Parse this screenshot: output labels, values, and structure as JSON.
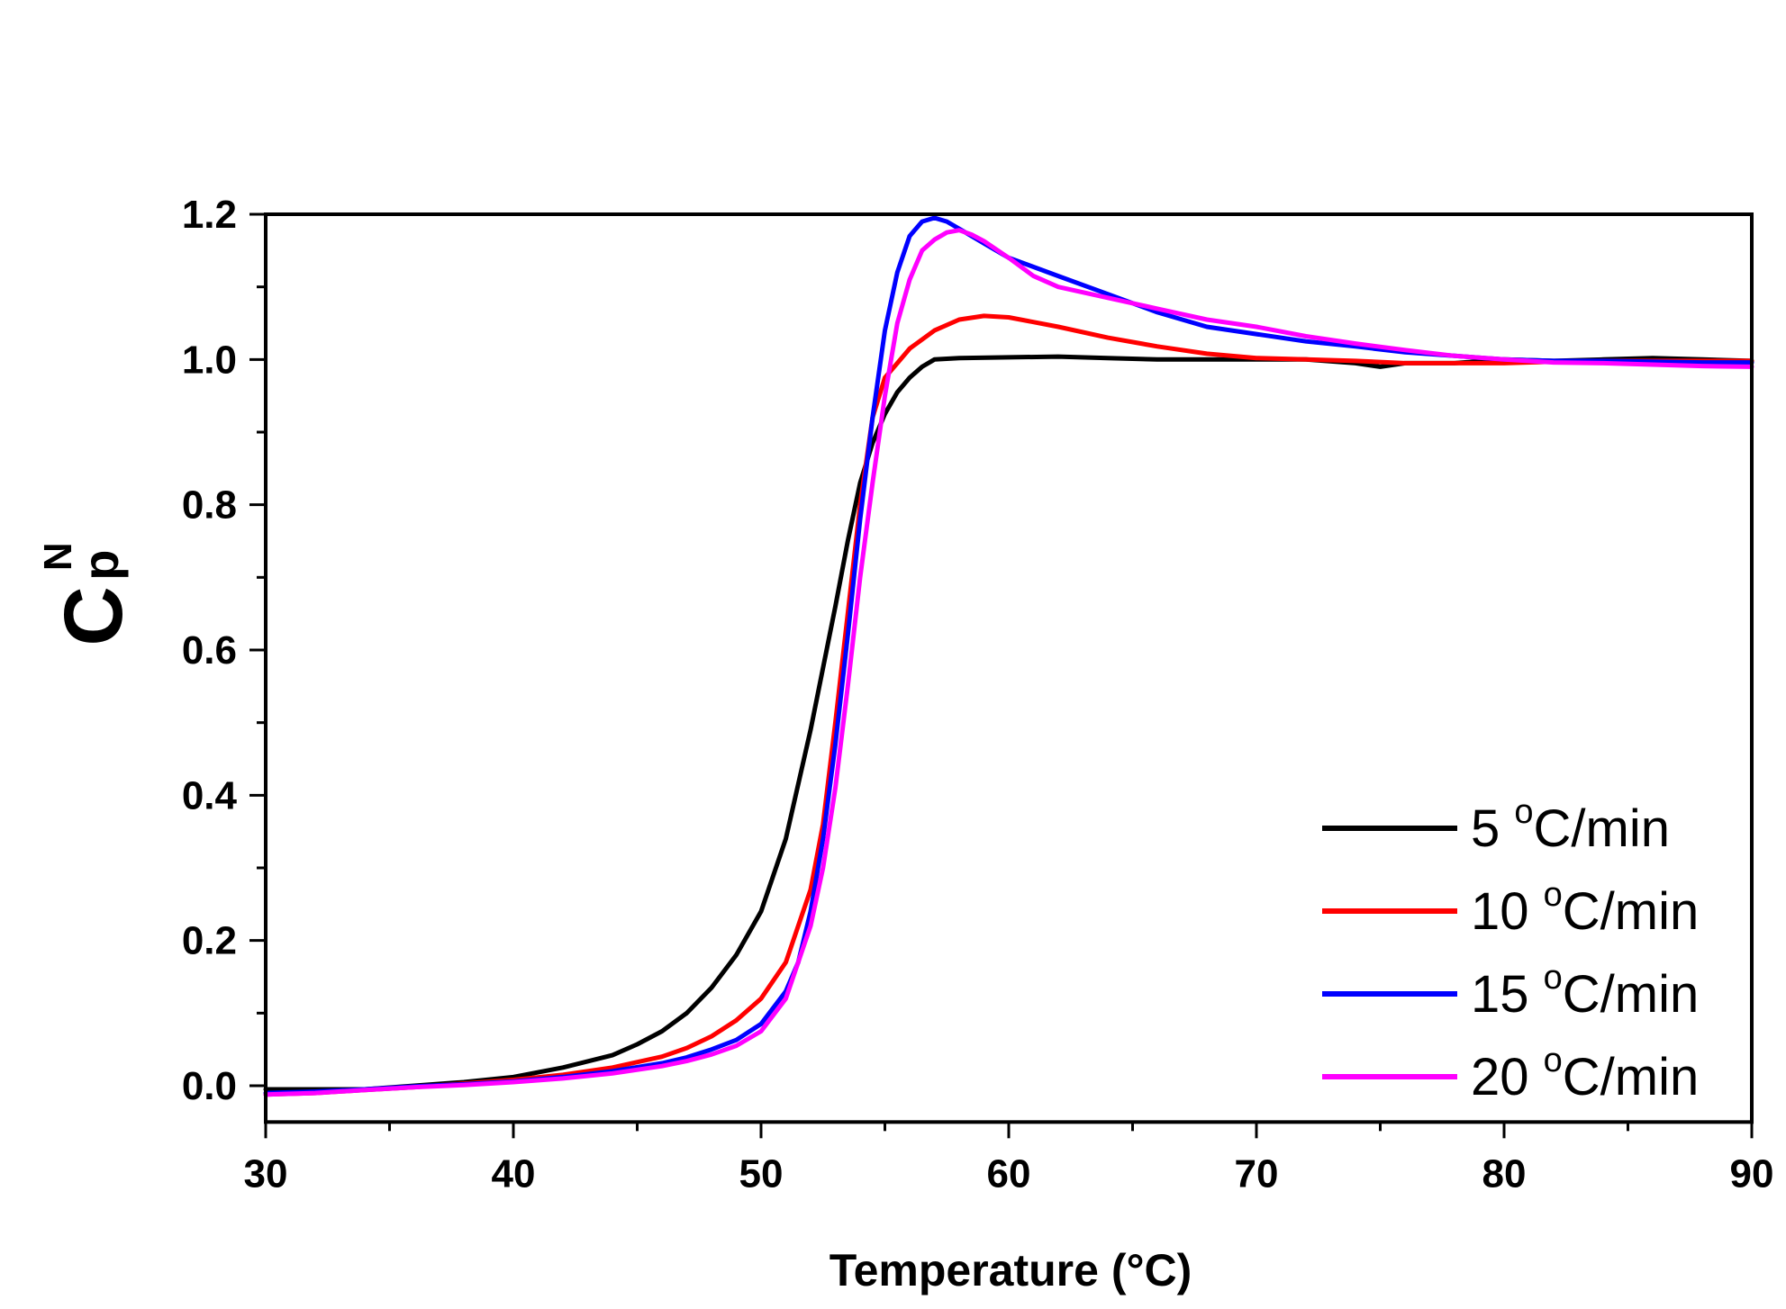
{
  "chart_data": {
    "type": "line",
    "title": "",
    "xlabel": "Temperature (°C)",
    "ylabel_main": "C",
    "ylabel_sub": "p",
    "ylabel_sup": "N",
    "xlim": [
      30,
      90
    ],
    "ylim": [
      -0.05,
      1.2
    ],
    "xticks": [
      30,
      40,
      50,
      60,
      70,
      80,
      90
    ],
    "xtick_labels": [
      "30",
      "40",
      "50",
      "60",
      "70",
      "80",
      "90"
    ],
    "yticks": [
      0.0,
      0.2,
      0.4,
      0.6,
      0.8,
      1.0,
      1.2
    ],
    "ytick_labels": [
      "0.0",
      "0.2",
      "0.4",
      "0.6",
      "0.8",
      "1.0",
      "1.2"
    ],
    "grid": false,
    "legend_position": "bottom-right",
    "series": [
      {
        "name": "5 °C/min",
        "rate": "5",
        "unit": "C/min",
        "color": "#000000",
        "x": [
          30,
          32,
          34,
          36,
          38,
          40,
          42,
          44,
          45,
          46,
          47,
          48,
          49,
          50,
          51,
          52,
          53,
          53.5,
          54,
          54.5,
          55,
          55.5,
          56,
          56.5,
          57,
          58,
          60,
          62,
          64,
          66,
          68,
          70,
          72,
          74,
          75,
          76,
          78,
          80,
          82,
          84,
          86,
          88,
          90
        ],
        "y": [
          -0.005,
          -0.005,
          -0.005,
          0.0,
          0.005,
          0.012,
          0.025,
          0.042,
          0.057,
          0.075,
          0.1,
          0.135,
          0.18,
          0.24,
          0.34,
          0.49,
          0.66,
          0.75,
          0.83,
          0.885,
          0.925,
          0.955,
          0.975,
          0.99,
          1.0,
          1.002,
          1.003,
          1.004,
          1.002,
          1.0,
          1.0,
          1.0,
          1.0,
          0.995,
          0.99,
          0.995,
          0.995,
          1.0,
          0.998,
          1.0,
          1.002,
          1.0,
          0.998
        ]
      },
      {
        "name": "10 °C/min",
        "rate": "10",
        "unit": "C/min",
        "color": "#ff0000",
        "x": [
          30,
          32,
          34,
          36,
          38,
          40,
          42,
          44,
          46,
          47,
          48,
          49,
          50,
          51,
          52,
          52.5,
          53,
          53.5,
          54,
          54.5,
          55,
          55.5,
          56,
          57,
          58,
          59,
          60,
          62,
          64,
          66,
          68,
          70,
          72,
          74,
          76,
          78,
          80,
          82,
          84,
          86,
          88,
          90
        ],
        "y": [
          -0.012,
          -0.01,
          -0.006,
          -0.002,
          0.003,
          0.008,
          0.015,
          0.025,
          0.04,
          0.052,
          0.068,
          0.09,
          0.12,
          0.17,
          0.27,
          0.36,
          0.5,
          0.65,
          0.8,
          0.92,
          0.975,
          0.995,
          1.015,
          1.04,
          1.055,
          1.06,
          1.058,
          1.045,
          1.03,
          1.018,
          1.008,
          1.002,
          1.0,
          0.998,
          0.995,
          0.995,
          0.995,
          0.997,
          0.998,
          0.998,
          0.998,
          0.998
        ]
      },
      {
        "name": "15 °C/min",
        "rate": "15",
        "unit": "C/min",
        "color": "#0000ff",
        "x": [
          30,
          32,
          34,
          36,
          38,
          40,
          42,
          44,
          46,
          47,
          48,
          49,
          50,
          51,
          51.5,
          52,
          52.5,
          53,
          53.5,
          54,
          54.5,
          55,
          55.5,
          56,
          56.5,
          57,
          57.5,
          58,
          59,
          60,
          62,
          64,
          66,
          68,
          70,
          72,
          74,
          76,
          78,
          80,
          82,
          84,
          86,
          88,
          90
        ],
        "y": [
          -0.01,
          -0.008,
          -0.005,
          -0.001,
          0.002,
          0.006,
          0.012,
          0.02,
          0.031,
          0.039,
          0.05,
          0.063,
          0.085,
          0.13,
          0.17,
          0.24,
          0.34,
          0.47,
          0.62,
          0.78,
          0.92,
          1.04,
          1.12,
          1.17,
          1.19,
          1.195,
          1.19,
          1.18,
          1.16,
          1.14,
          1.115,
          1.09,
          1.065,
          1.045,
          1.035,
          1.025,
          1.018,
          1.01,
          1.005,
          1.0,
          0.998,
          0.998,
          0.997,
          0.996,
          0.996
        ]
      },
      {
        "name": "20 °C/min",
        "rate": "20",
        "unit": "C/min",
        "color": "#ff00ff",
        "x": [
          30,
          32,
          34,
          36,
          38,
          40,
          42,
          44,
          46,
          47,
          48,
          49,
          50,
          51,
          52,
          52.5,
          53,
          53.5,
          54,
          54.5,
          55,
          55.5,
          56,
          56.5,
          57,
          57.5,
          58,
          58.5,
          59,
          60,
          61,
          62,
          64,
          66,
          68,
          70,
          72,
          74,
          76,
          78,
          80,
          82,
          84,
          86,
          88,
          90
        ],
        "y": [
          -0.012,
          -0.01,
          -0.006,
          -0.002,
          0.001,
          0.005,
          0.01,
          0.017,
          0.027,
          0.034,
          0.043,
          0.055,
          0.075,
          0.12,
          0.22,
          0.3,
          0.41,
          0.55,
          0.7,
          0.83,
          0.95,
          1.05,
          1.11,
          1.15,
          1.165,
          1.175,
          1.178,
          1.172,
          1.163,
          1.14,
          1.115,
          1.1,
          1.085,
          1.07,
          1.055,
          1.045,
          1.032,
          1.022,
          1.013,
          1.005,
          1.0,
          0.996,
          0.995,
          0.993,
          0.991,
          0.99
        ]
      }
    ]
  }
}
